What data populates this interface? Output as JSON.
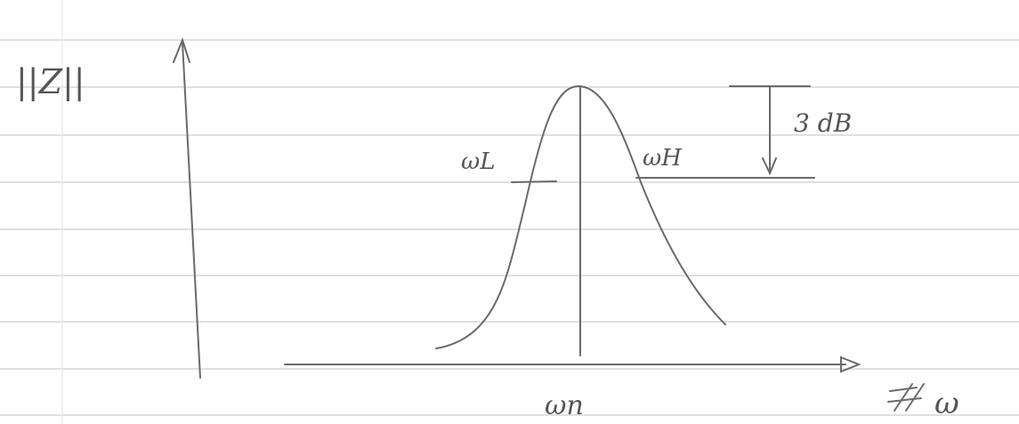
{
  "axes": {
    "y_label": "||Z||",
    "x_label": "ω"
  },
  "annotations": {
    "bandwidth_drop": "3 dB",
    "lower_cutoff": "ωL",
    "upper_cutoff": "ωH",
    "center": "ωn"
  }
}
